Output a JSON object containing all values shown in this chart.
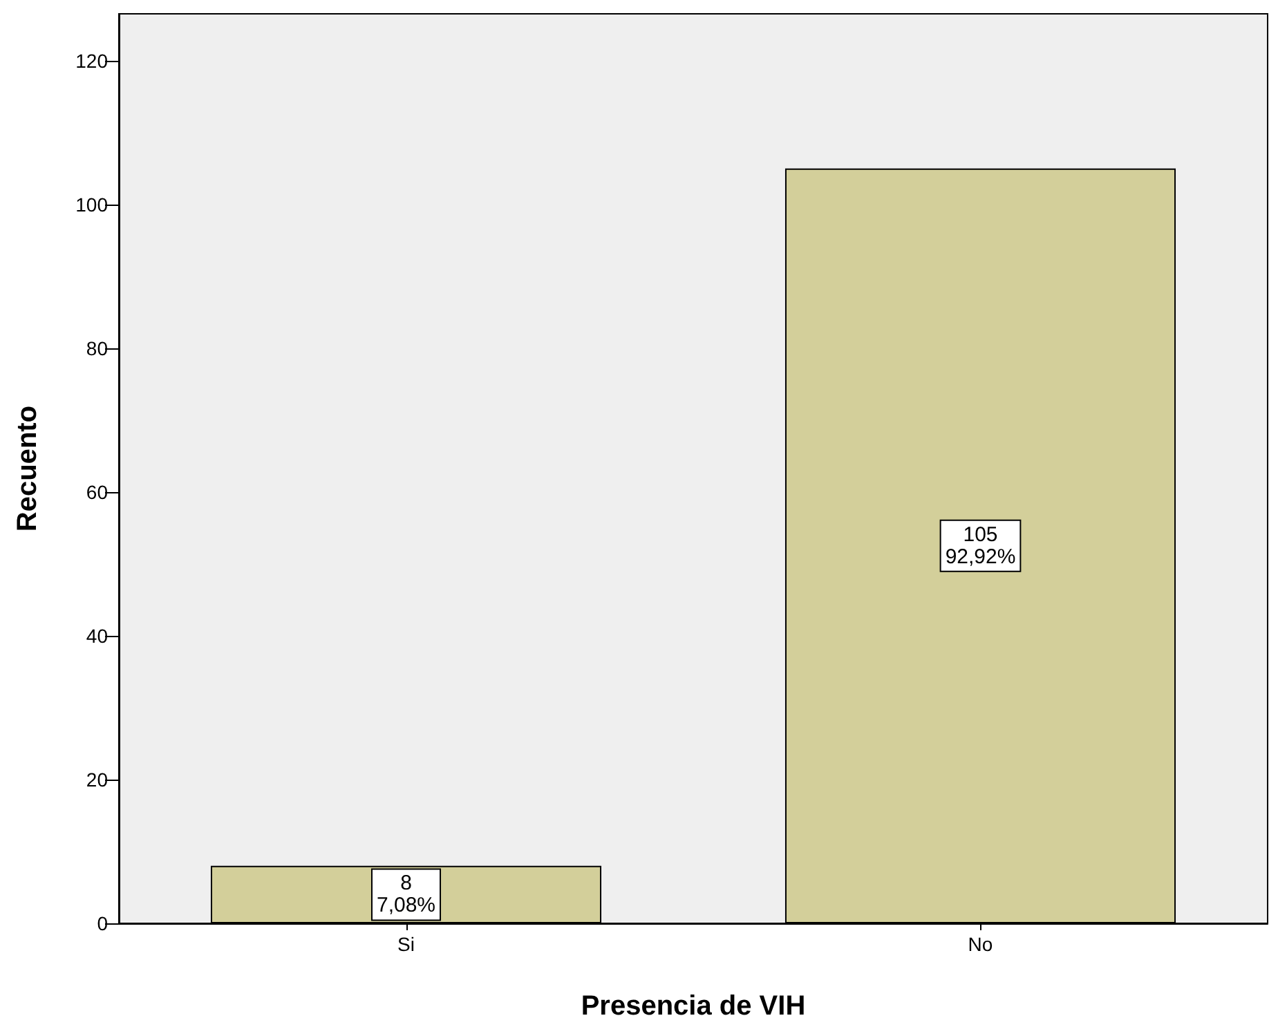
{
  "chart_data": {
    "type": "bar",
    "xlabel": "Presencia de VIH",
    "ylabel": "Recuento",
    "categories": [
      "Si",
      "No"
    ],
    "values": [
      8,
      105
    ],
    "value_labels": [
      "8\n7,08%",
      "105\n92,92%"
    ],
    "color": "#d3cf9a",
    "ylim": [
      0,
      126.5
    ],
    "yticks": [
      0,
      20,
      40,
      60,
      80,
      100,
      120
    ],
    "grid": false
  }
}
